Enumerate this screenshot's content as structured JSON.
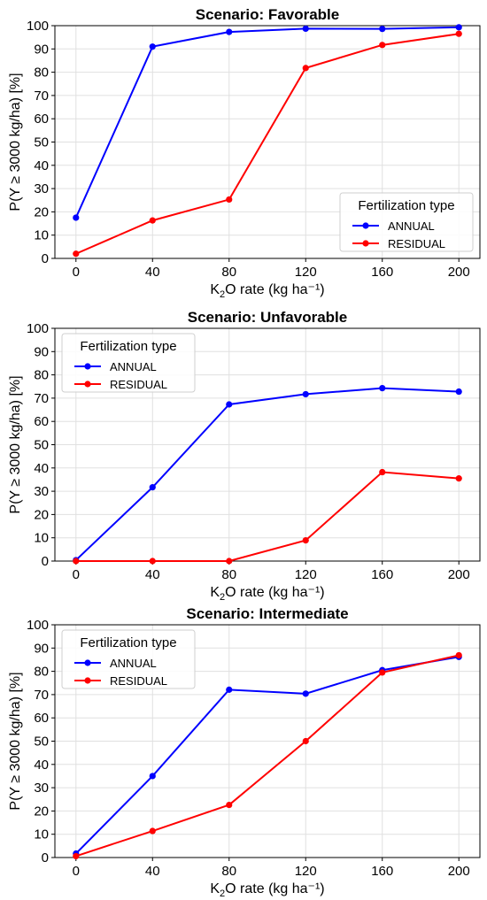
{
  "chart_data": [
    {
      "type": "line",
      "title": "Scenario: Favorable",
      "xlabel": "K2O rate (kg ha⁻¹)",
      "ylabel": "P(Y ≥ 3000 kg/ha) [%]",
      "x": [
        0,
        40,
        80,
        120,
        160,
        200
      ],
      "xticks": [
        "0",
        "40",
        "80",
        "120",
        "160",
        "200"
      ],
      "yticks": [
        "0",
        "10",
        "20",
        "30",
        "40",
        "50",
        "60",
        "70",
        "80",
        "90",
        "100"
      ],
      "ylim": [
        0,
        100
      ],
      "grid": true,
      "legend": {
        "title": "Fertilization type",
        "placement": "lower-right"
      },
      "series": [
        {
          "name": "ANNUAL",
          "color": "#0000ff",
          "values": [
            17.5,
            91.0,
            97.3,
            98.7,
            98.6,
            99.3
          ]
        },
        {
          "name": "RESIDUAL",
          "color": "#ff0000",
          "values": [
            2.0,
            16.3,
            25.3,
            81.8,
            91.7,
            96.5
          ]
        }
      ]
    },
    {
      "type": "line",
      "title": "Scenario: Unfavorable",
      "xlabel": "K2O rate (kg ha⁻¹)",
      "ylabel": "P(Y ≥ 3000 kg/ha) [%]",
      "x": [
        0,
        40,
        80,
        120,
        160,
        200
      ],
      "xticks": [
        "0",
        "40",
        "80",
        "120",
        "160",
        "200"
      ],
      "yticks": [
        "0",
        "10",
        "20",
        "30",
        "40",
        "50",
        "60",
        "70",
        "80",
        "90",
        "100"
      ],
      "ylim": [
        0,
        100
      ],
      "grid": true,
      "legend": {
        "title": "Fertilization type",
        "placement": "upper-left"
      },
      "series": [
        {
          "name": "ANNUAL",
          "color": "#0000ff",
          "values": [
            0.4,
            31.7,
            67.3,
            71.7,
            74.3,
            72.8
          ]
        },
        {
          "name": "RESIDUAL",
          "color": "#ff0000",
          "values": [
            0.0,
            0.0,
            0.0,
            8.9,
            38.2,
            35.5
          ]
        }
      ]
    },
    {
      "type": "line",
      "title": "Scenario: Intermediate",
      "xlabel": "K2O rate (kg ha⁻¹)",
      "ylabel": "P(Y ≥ 3000 kg/ha) [%]",
      "x": [
        0,
        40,
        80,
        120,
        160,
        200
      ],
      "xticks": [
        "0",
        "40",
        "80",
        "120",
        "160",
        "200"
      ],
      "yticks": [
        "0",
        "10",
        "20",
        "30",
        "40",
        "50",
        "60",
        "70",
        "80",
        "90",
        "100"
      ],
      "ylim": [
        0,
        100
      ],
      "grid": true,
      "legend": {
        "title": "Fertilization type",
        "placement": "upper-left"
      },
      "series": [
        {
          "name": "ANNUAL",
          "color": "#0000ff",
          "values": [
            1.7,
            35.0,
            72.1,
            70.4,
            80.5,
            86.2
          ]
        },
        {
          "name": "RESIDUAL",
          "color": "#ff0000",
          "values": [
            0.6,
            11.4,
            22.6,
            50.0,
            79.5,
            86.9
          ]
        }
      ]
    }
  ]
}
